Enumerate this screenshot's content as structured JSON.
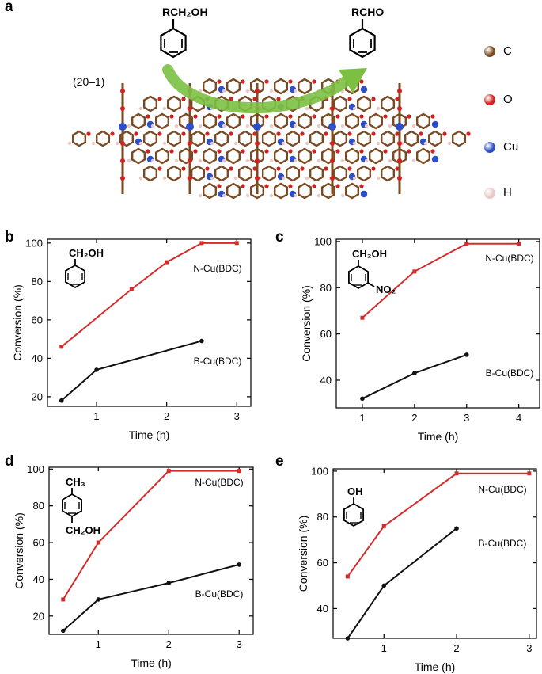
{
  "colors": {
    "n_cu": "#d42b2b",
    "b_cu": "#111111",
    "arrow": "#7bc043",
    "carbon": "#7a4a22",
    "oxygen": "#d32020",
    "copper": "#2d4fc8",
    "hydrogen": "#e7c9c6"
  },
  "panel_a": {
    "label": "a",
    "reactant": "RCH₂OH",
    "product": "RCHO",
    "facet": "(20–1)",
    "legend": [
      {
        "symbol": "C",
        "color": "#7a4a22"
      },
      {
        "symbol": "O",
        "color": "#d32020"
      },
      {
        "symbol": "Cu",
        "color": "#2d4fc8"
      },
      {
        "symbol": "H",
        "color": "#e7c9c6"
      }
    ]
  },
  "chart_data": [
    {
      "panel": "b",
      "type": "line",
      "substrate": {
        "top": "CH₂OH",
        "bottom": ""
      },
      "xlabel": "Time (h)",
      "ylabel": "Conversion (%)",
      "xlim": [
        0.3,
        3.2
      ],
      "ylim": [
        15,
        102
      ],
      "xticks": [
        1,
        2,
        3
      ],
      "yticks": [
        20,
        40,
        60,
        80,
        100
      ],
      "series": [
        {
          "name": "N-Cu(BDC)",
          "x": [
            0.5,
            1.5,
            2,
            2.5,
            3
          ],
          "y": [
            46,
            76,
            90,
            100,
            100
          ]
        },
        {
          "name": "B-Cu(BDC)",
          "x": [
            0.5,
            1,
            2.5
          ],
          "y": [
            18,
            34,
            49
          ]
        }
      ]
    },
    {
      "panel": "c",
      "type": "line",
      "substrate": {
        "top": "CH₂OH",
        "bottom": "NO₂"
      },
      "xlabel": "Time (h)",
      "ylabel": "Conversion (%)",
      "xlim": [
        0.5,
        4.4
      ],
      "ylim": [
        28,
        101
      ],
      "xticks": [
        1,
        2,
        3,
        4
      ],
      "yticks": [
        40,
        60,
        80,
        100
      ],
      "series": [
        {
          "name": "N-Cu(BDC)",
          "x": [
            1,
            2,
            3,
            4
          ],
          "y": [
            67,
            87,
            99,
            99
          ]
        },
        {
          "name": "B-Cu(BDC)",
          "x": [
            1,
            2,
            3
          ],
          "y": [
            32,
            43,
            51
          ]
        }
      ]
    },
    {
      "panel": "d",
      "type": "line",
      "substrate": {
        "top": "CH₃",
        "bottom": "CH₂OH"
      },
      "xlabel": "Time (h)",
      "ylabel": "Conversion (%)",
      "xlim": [
        0.3,
        3.2
      ],
      "ylim": [
        10,
        101
      ],
      "xticks": [
        1,
        2,
        3
      ],
      "yticks": [
        20,
        40,
        60,
        80,
        100
      ],
      "series": [
        {
          "name": "N-Cu(BDC)",
          "x": [
            0.5,
            1,
            2,
            3
          ],
          "y": [
            29,
            60,
            99,
            99
          ]
        },
        {
          "name": "B-Cu(BDC)",
          "x": [
            0.5,
            1,
            2,
            3
          ],
          "y": [
            12,
            29,
            38,
            48
          ]
        }
      ]
    },
    {
      "panel": "e",
      "type": "line",
      "substrate": {
        "top": "OH",
        "bottom": ""
      },
      "xlabel": "Time (h)",
      "ylabel": "Conversion (%)",
      "xlim": [
        0.3,
        3.1
      ],
      "ylim": [
        27,
        101
      ],
      "xticks": [
        1,
        2,
        3
      ],
      "yticks": [
        40,
        60,
        80,
        100
      ],
      "series": [
        {
          "name": "N-Cu(BDC)",
          "x": [
            0.5,
            1,
            2,
            3
          ],
          "y": [
            54,
            76,
            99,
            99
          ]
        },
        {
          "name": "B-Cu(BDC)",
          "x": [
            0.5,
            1,
            2
          ],
          "y": [
            27,
            50,
            75
          ]
        }
      ]
    }
  ]
}
